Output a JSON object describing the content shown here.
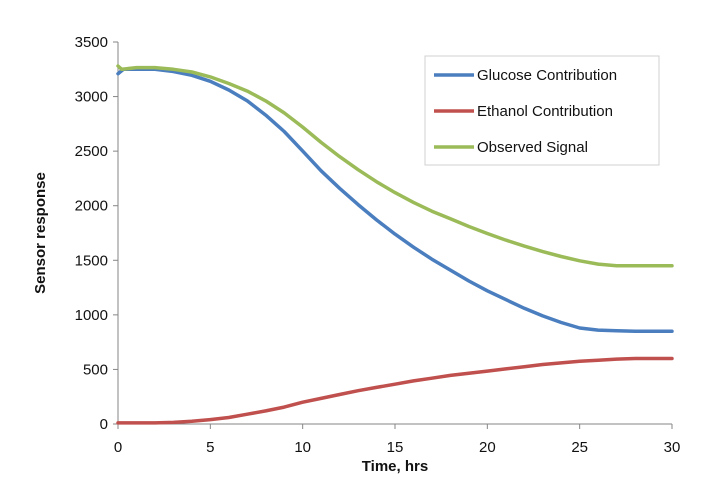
{
  "chart_data": {
    "type": "line",
    "title": "",
    "xlabel": "Time, hrs",
    "ylabel": "Sensor response",
    "xlim": [
      0,
      30
    ],
    "ylim": [
      0,
      3500
    ],
    "xticks": [
      0,
      5,
      10,
      15,
      20,
      25,
      30
    ],
    "yticks": [
      0,
      500,
      1000,
      1500,
      2000,
      2500,
      3000,
      3500
    ],
    "grid": false,
    "legend_position": "top-right",
    "series": [
      {
        "name": "Glucose Contribution",
        "color": "#4a7ebf",
        "x": [
          0,
          0.3,
          1,
          2,
          3,
          4,
          5,
          6,
          7,
          8,
          9,
          10,
          11,
          12,
          13,
          14,
          15,
          16,
          17,
          18,
          19,
          20,
          21,
          22,
          23,
          24,
          25,
          26,
          27,
          28,
          29,
          30
        ],
        "y": [
          3210,
          3250,
          3250,
          3250,
          3230,
          3195,
          3140,
          3060,
          2960,
          2830,
          2680,
          2500,
          2320,
          2160,
          2010,
          1870,
          1740,
          1620,
          1510,
          1410,
          1310,
          1220,
          1140,
          1060,
          990,
          930,
          880,
          860,
          855,
          850,
          850,
          850
        ]
      },
      {
        "name": "Ethanol Contribution",
        "color": "#c0504d",
        "x": [
          0,
          1,
          2,
          3,
          4,
          5,
          6,
          7,
          8,
          9,
          10,
          11,
          12,
          13,
          14,
          15,
          16,
          17,
          18,
          19,
          20,
          21,
          22,
          23,
          24,
          25,
          26,
          27,
          28,
          29,
          30
        ],
        "y": [
          10,
          10,
          10,
          15,
          25,
          40,
          60,
          90,
          120,
          155,
          200,
          235,
          270,
          305,
          335,
          365,
          395,
          420,
          445,
          465,
          485,
          505,
          525,
          545,
          560,
          575,
          585,
          595,
          600,
          600,
          600
        ]
      },
      {
        "name": "Observed Signal",
        "color": "#9bbb59",
        "x": [
          0,
          0.2,
          1,
          2,
          3,
          4,
          5,
          6,
          7,
          8,
          9,
          10,
          11,
          12,
          13,
          14,
          15,
          16,
          17,
          18,
          19,
          20,
          21,
          22,
          23,
          24,
          25,
          26,
          27,
          28,
          29,
          30
        ],
        "y": [
          3280,
          3250,
          3265,
          3265,
          3250,
          3225,
          3180,
          3120,
          3050,
          2960,
          2850,
          2720,
          2580,
          2450,
          2330,
          2220,
          2120,
          2030,
          1950,
          1880,
          1810,
          1745,
          1685,
          1630,
          1580,
          1535,
          1495,
          1465,
          1450,
          1450,
          1450,
          1450
        ]
      }
    ]
  }
}
